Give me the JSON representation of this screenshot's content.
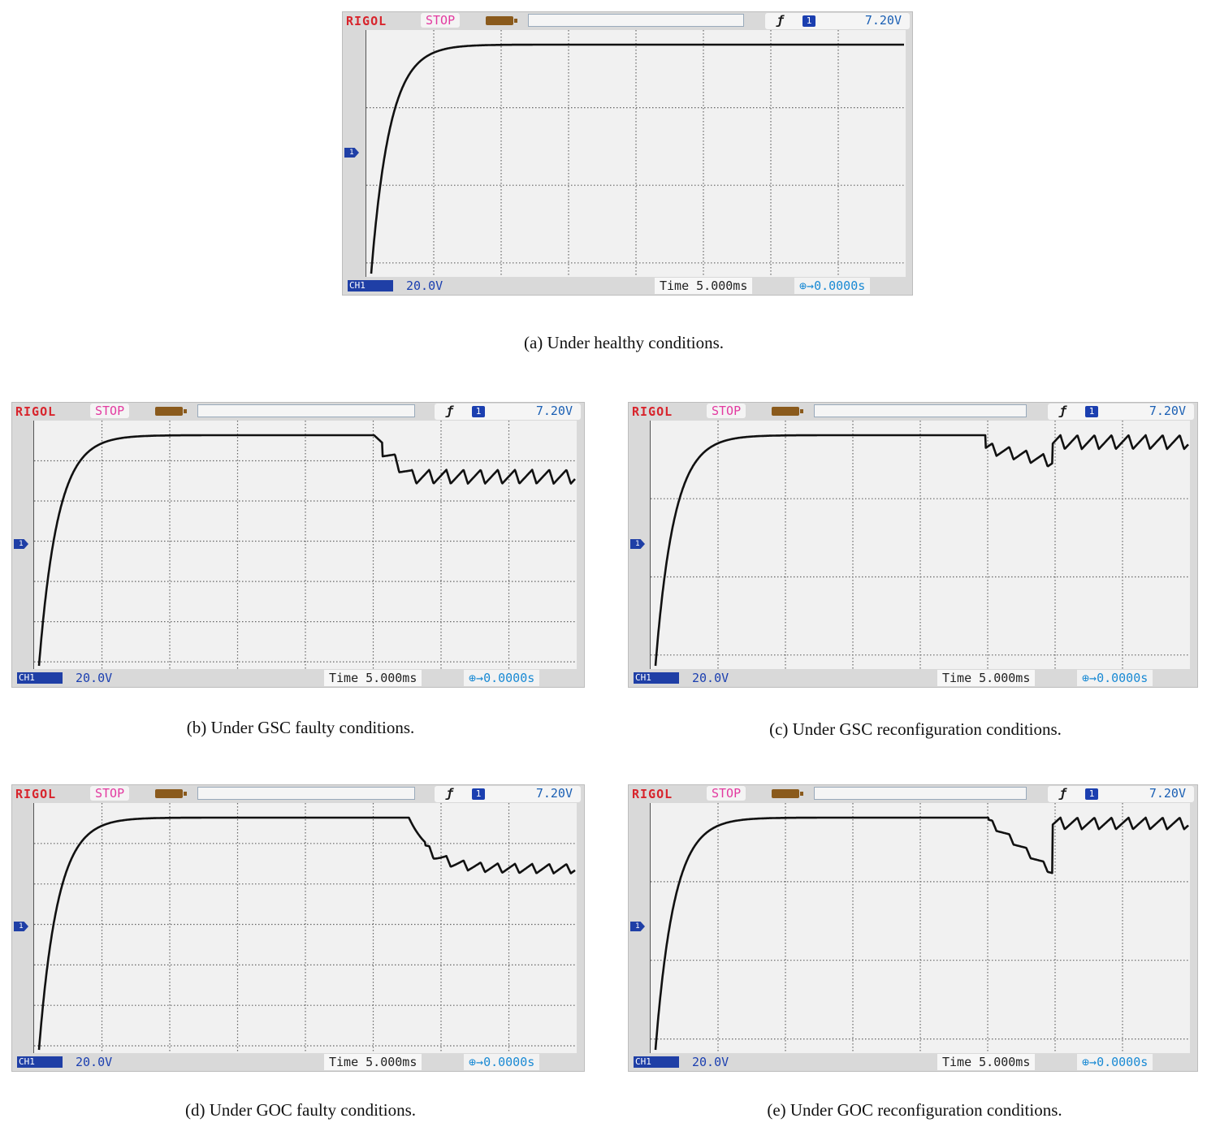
{
  "chart_data": [
    {
      "type": "line",
      "id": "a",
      "header": {
        "brand": "RIGOL",
        "status": "STOP",
        "trigger_level": "7.20V",
        "trigger_source": "1"
      },
      "footer": {
        "channel": "CH1",
        "volts_per_div": "20.0V",
        "timebase": "Time 5.000ms",
        "trigger_offset": "0.0000s"
      },
      "channel_marker": "1",
      "caption": "(a) Under healthy conditions.",
      "waveform": "healthy",
      "divisions": {
        "x": 8,
        "y": 3
      }
    },
    {
      "type": "line",
      "id": "b",
      "header": {
        "brand": "RIGOL",
        "status": "STOP",
        "trigger_level": "7.20V",
        "trigger_source": "1"
      },
      "footer": {
        "channel": "CH1",
        "volts_per_div": "20.0V",
        "timebase": "Time 5.000ms",
        "trigger_offset": "0.0000s"
      },
      "channel_marker": "1",
      "caption": "(b) Under GSC faulty conditions.",
      "waveform": "gsc_fault",
      "divisions": {
        "x": 8,
        "y": 6
      }
    },
    {
      "type": "line",
      "id": "c",
      "header": {
        "brand": "RIGOL",
        "status": "STOP",
        "trigger_level": "7.20V",
        "trigger_source": "1"
      },
      "footer": {
        "channel": "CH1",
        "volts_per_div": "20.0V",
        "timebase": "Time 5.000ms",
        "trigger_offset": "0.0000s"
      },
      "channel_marker": "1",
      "caption": "(c) Under GSC reconfiguration conditions.",
      "waveform": "gsc_reconfig",
      "divisions": {
        "x": 8,
        "y": 3
      }
    },
    {
      "type": "line",
      "id": "d",
      "header": {
        "brand": "RIGOL",
        "status": "STOP",
        "trigger_level": "7.20V",
        "trigger_source": "1"
      },
      "footer": {
        "channel": "CH1",
        "volts_per_div": "20.0V",
        "timebase": "Time 5.000ms",
        "trigger_offset": "0.0000s"
      },
      "channel_marker": "1",
      "caption": "(d) Under GOC faulty conditions.",
      "waveform": "goc_fault",
      "divisions": {
        "x": 8,
        "y": 6
      }
    },
    {
      "type": "line",
      "id": "e",
      "header": {
        "brand": "RIGOL",
        "status": "STOP",
        "trigger_level": "7.20V",
        "trigger_source": "1"
      },
      "footer": {
        "channel": "CH1",
        "volts_per_div": "20.0V",
        "timebase": "Time 5.000ms",
        "trigger_offset": "0.0000s"
      },
      "channel_marker": "1",
      "caption": "(e) Under GOC reconfiguration conditions.",
      "waveform": "goc_reconfig",
      "divisions": {
        "x": 8,
        "y": 3
      }
    }
  ],
  "colors": {
    "brand": "#d8242c",
    "status": "#e33aa0",
    "channel": "#1f3fa6",
    "trace": "#111111",
    "grid": "#666666",
    "screen": "#f1f1f1",
    "offset_text": "#1a8ad4"
  }
}
